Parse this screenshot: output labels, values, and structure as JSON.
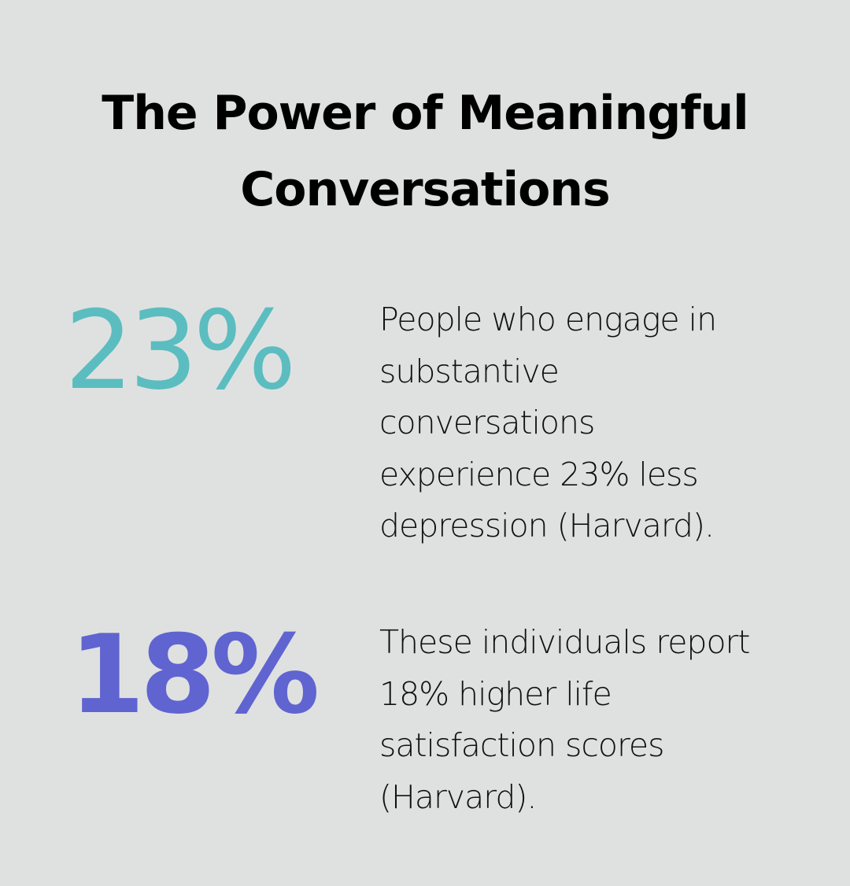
{
  "title_line1": "The Power of Meaningful",
  "title_line2": "Conversations",
  "stats": [
    {
      "value": "23%",
      "color": "#5bbdbf",
      "description_lines": [
        "People who engage in",
        "substantive",
        "conversations",
        "experience 23% less",
        "depression (Harvard)."
      ]
    },
    {
      "value": "18%",
      "color": "#6064d0",
      "description_lines": [
        "These individuals report",
        "18% higher life",
        "satisfaction scores",
        "(Harvard)."
      ]
    }
  ],
  "colors": {
    "background": "#dfe1e1",
    "title": "#000000",
    "text": "#111111"
  }
}
